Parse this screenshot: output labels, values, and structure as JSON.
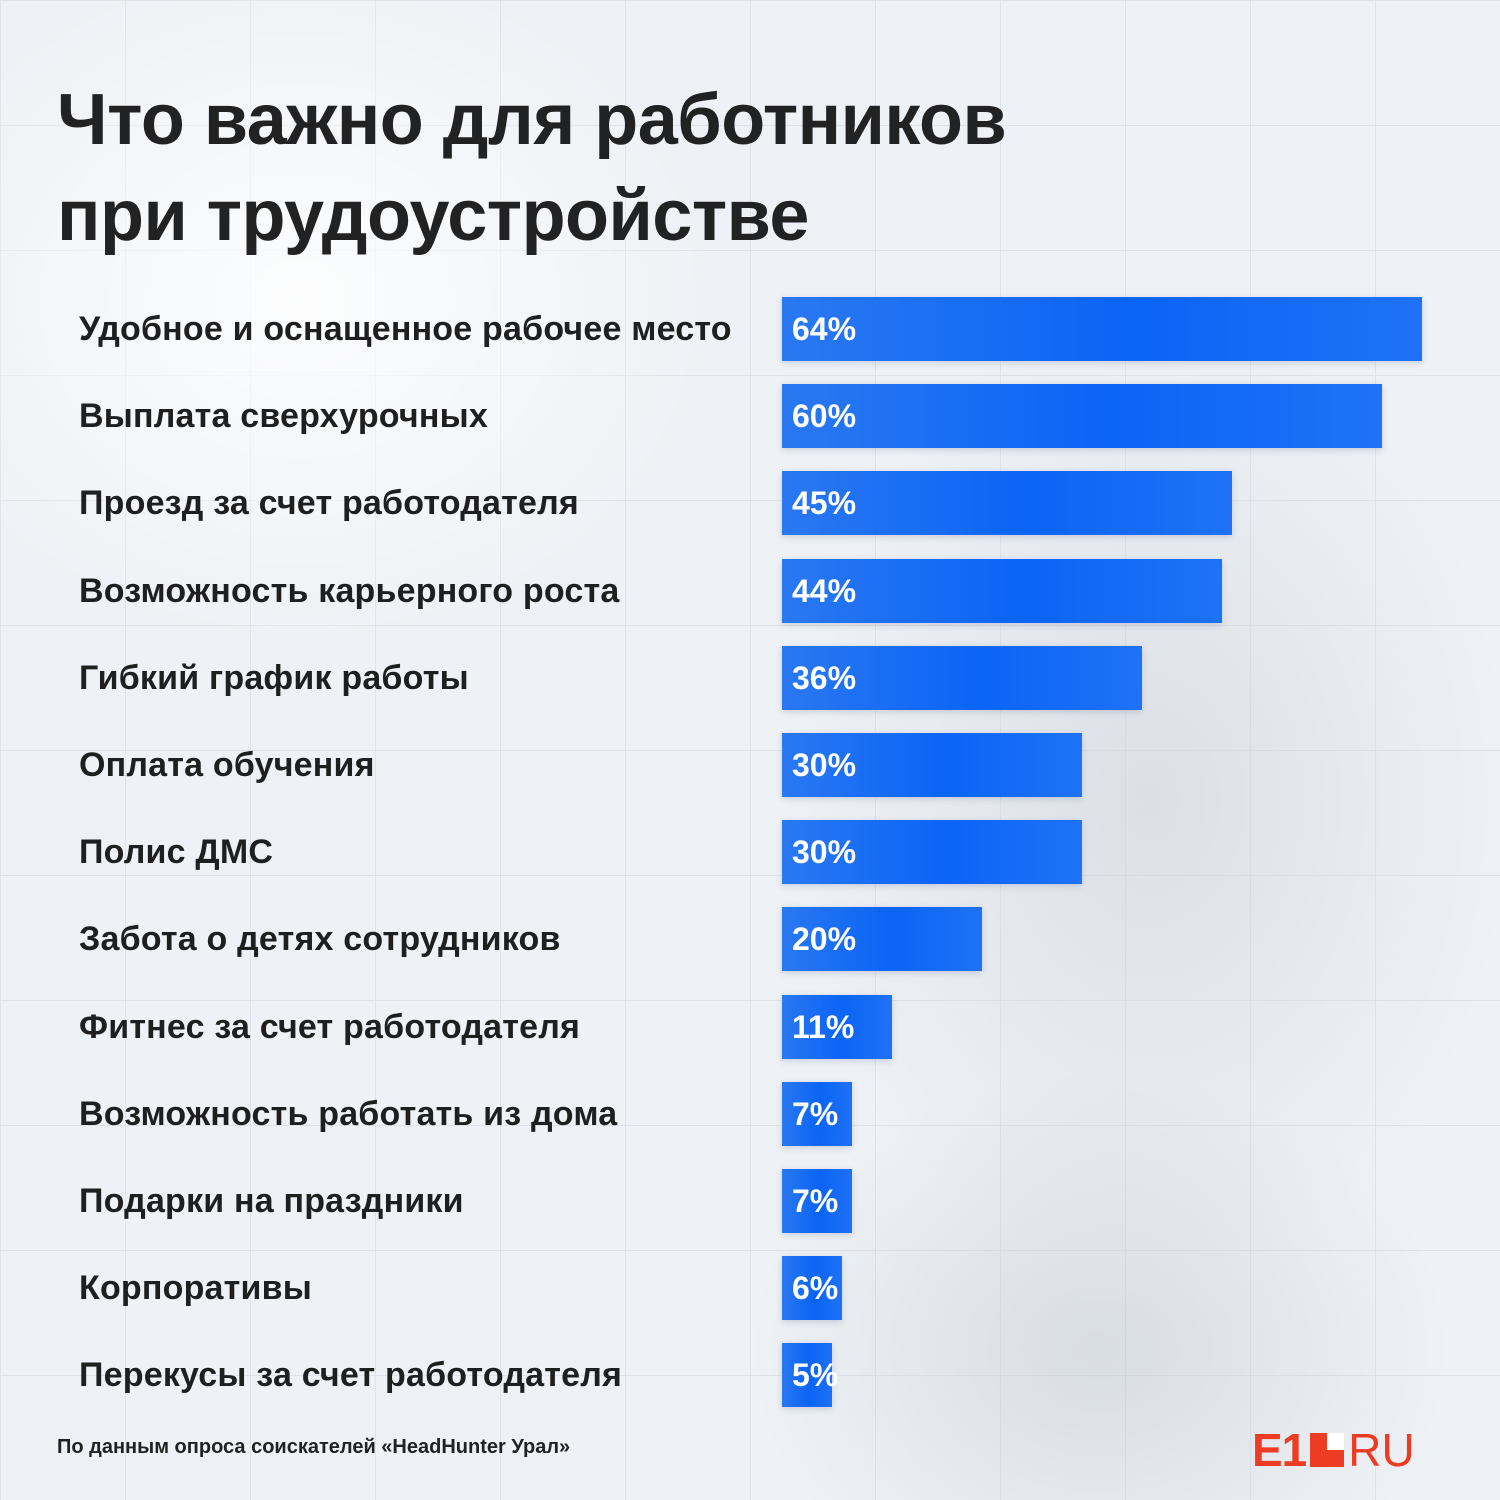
{
  "title_line1": "Что важно для работников",
  "title_line2": "при трудоустройстве",
  "source": "По данным опроса соискателей «HeadHunter Урал»",
  "logo": {
    "left": "E1",
    "right": "RU",
    "accent_color": "#ee3b24"
  },
  "colors": {
    "bar": "#0a64f5",
    "text": "#1f1f1f"
  },
  "chart_data": {
    "type": "bar",
    "orientation": "horizontal",
    "title": "Что важно для работников при трудоустройстве",
    "categories": [
      "Удобное и оснащенное рабочее место",
      "Выплата сверхурочных",
      "Проезд за счет работодателя",
      "Возможность карьерного роста",
      "Гибкий график работы",
      "Оплата обучения",
      "Полис ДМС",
      "Забота о детях сотрудников",
      "Фитнес за счет работодателя",
      "Возможность работать из дома",
      "Подарки на праздники",
      "Корпоративы",
      "Перекусы за счет работодателя"
    ],
    "values": [
      64,
      60,
      45,
      44,
      36,
      30,
      30,
      20,
      11,
      7,
      7,
      6,
      5
    ],
    "value_labels": [
      "64%",
      "60%",
      "45%",
      "44%",
      "36%",
      "30%",
      "30%",
      "20%",
      "11%",
      "7%",
      "7%",
      "6%",
      "5%"
    ],
    "unit": "%",
    "xlim": [
      0,
      64
    ],
    "grid": false,
    "legend": "none"
  }
}
